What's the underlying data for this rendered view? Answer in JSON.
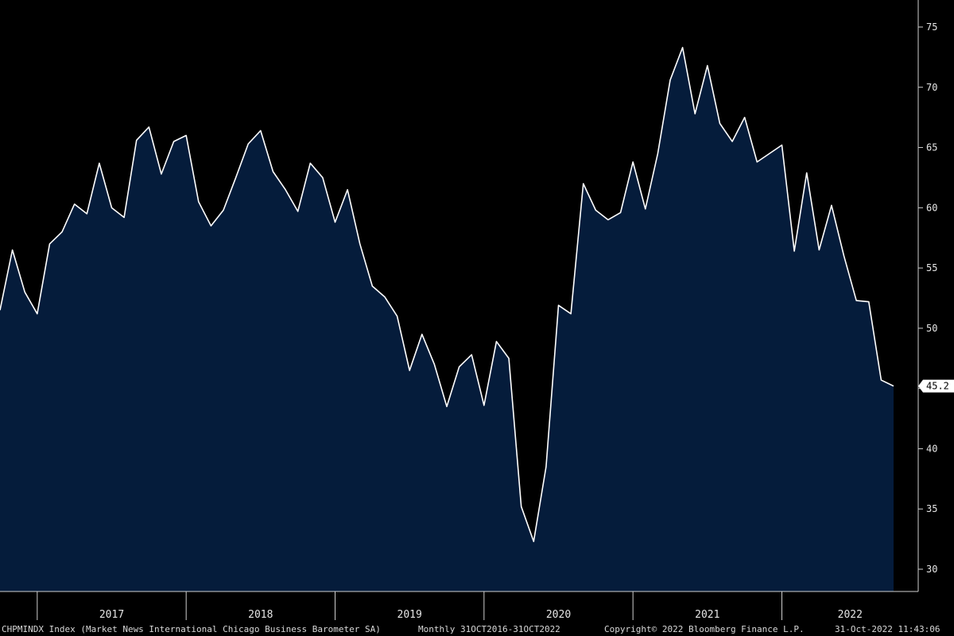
{
  "chart_data": {
    "type": "area",
    "x_start": "2016-10",
    "x_end": "2022-10",
    "frequency": "monthly",
    "series": [
      {
        "values": [
          51.5,
          56.5,
          53.0,
          51.2,
          57.0,
          58.0,
          60.3,
          59.5,
          63.7,
          60.0,
          59.2,
          65.6,
          66.7,
          62.8,
          65.5,
          66.0,
          60.5,
          58.5,
          59.8,
          62.5,
          65.3,
          66.4,
          63.0,
          61.5,
          59.7,
          63.7,
          62.5,
          58.8,
          61.5,
          57.0,
          53.5,
          52.6,
          51.0,
          46.5,
          49.5,
          47.0,
          43.5,
          46.8,
          47.8,
          43.6,
          48.9,
          47.5,
          35.2,
          32.3,
          38.5,
          51.9,
          51.2,
          62.0,
          59.8,
          59.0,
          59.6,
          63.8,
          59.9,
          64.5,
          70.6,
          73.3,
          67.8,
          71.8,
          67.0,
          65.5,
          67.5,
          63.8,
          64.5,
          65.2,
          56.4,
          62.9,
          56.5,
          60.2,
          56.0,
          52.3,
          52.2,
          45.7,
          45.2
        ]
      }
    ],
    "ylim": [
      28,
      77
    ],
    "yticks": [
      "30",
      "35",
      "40",
      "45",
      "50",
      "55",
      "60",
      "65",
      "70",
      "75"
    ],
    "xticks": [
      "2017",
      "2018",
      "2019",
      "2020",
      "2021",
      "2022"
    ],
    "last_value_label": "45.2",
    "colors": {
      "background": "#000000",
      "fill": "#051c3b",
      "line": "#ffffff",
      "axis": "#cfcfcf"
    },
    "grid": false
  },
  "footer": {
    "ticker": "CHPMINDX Index (Market News International Chicago Business Barometer SA)",
    "range": "Monthly 31OCT2016-31OCT2022",
    "copyright": "Copyright© 2022 Bloomberg Finance L.P.",
    "timestamp": "31-Oct-2022 11:43:06"
  }
}
